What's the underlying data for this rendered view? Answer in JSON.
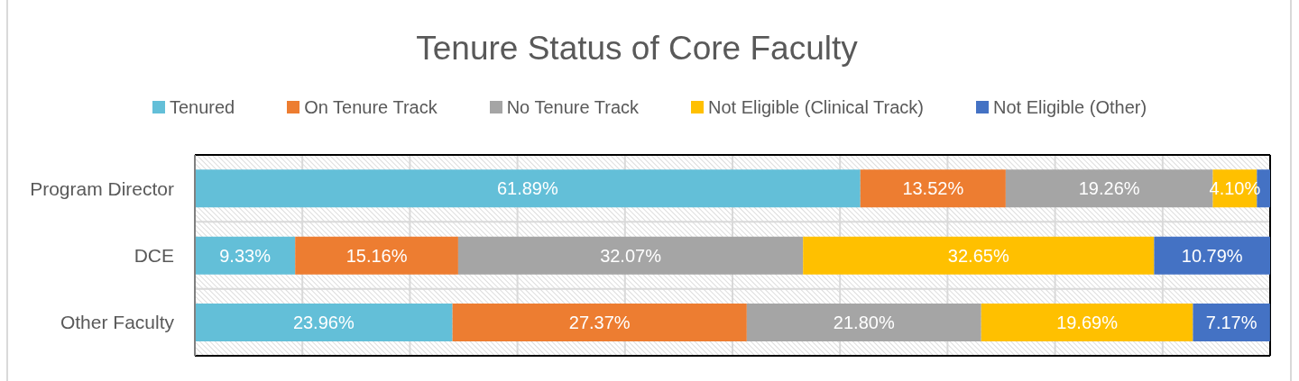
{
  "chart_data": {
    "type": "bar",
    "orientation": "horizontal",
    "stacked": true,
    "title": "Tenure Status of Core Faculty",
    "categories": [
      "Program Director",
      "DCE",
      "Other Faculty"
    ],
    "series": [
      {
        "name": "Tenured",
        "color": "#63bfd8",
        "values": [
          61.89,
          9.33,
          23.96
        ],
        "value_labels": [
          "61.89%",
          "9.33%",
          "23.96%"
        ]
      },
      {
        "name": "On Tenure Track",
        "color": "#ed7d31",
        "values": [
          13.52,
          15.16,
          27.37
        ],
        "value_labels": [
          "13.52%",
          "15.16%",
          "27.37%"
        ]
      },
      {
        "name": "No Tenure Track",
        "color": "#a5a5a5",
        "values": [
          19.26,
          32.07,
          21.8
        ],
        "value_labels": [
          "19.26%",
          "32.07%",
          "21.80%"
        ]
      },
      {
        "name": "Not Eligible (Clinical Track)",
        "color": "#ffc000",
        "values": [
          4.1,
          32.65,
          19.69
        ],
        "value_labels": [
          "4.10%",
          "32.65%",
          "19.69%"
        ]
      },
      {
        "name": "Not Eligible (Other)",
        "color": "#4472c4",
        "values": [
          1.23,
          10.79,
          7.17
        ],
        "value_labels": [
          null,
          "10.79%",
          "7.17%"
        ]
      }
    ],
    "xlim": [
      0,
      100
    ],
    "xticks": [
      {
        "value": 0,
        "label": null
      },
      {
        "value": 10,
        "label": null
      },
      {
        "value": 20,
        "label": null
      },
      {
        "value": 30,
        "label": null
      },
      {
        "value": 40,
        "label": null
      },
      {
        "value": 50,
        "label": null
      },
      {
        "value": 60,
        "label": null
      },
      {
        "value": 70,
        "label": null
      },
      {
        "value": 80,
        "label": null
      },
      {
        "value": 90,
        "label": null
      },
      {
        "value": 100,
        "label": null
      }
    ],
    "tick_labels": "y",
    "grid": true,
    "legend": "top"
  }
}
